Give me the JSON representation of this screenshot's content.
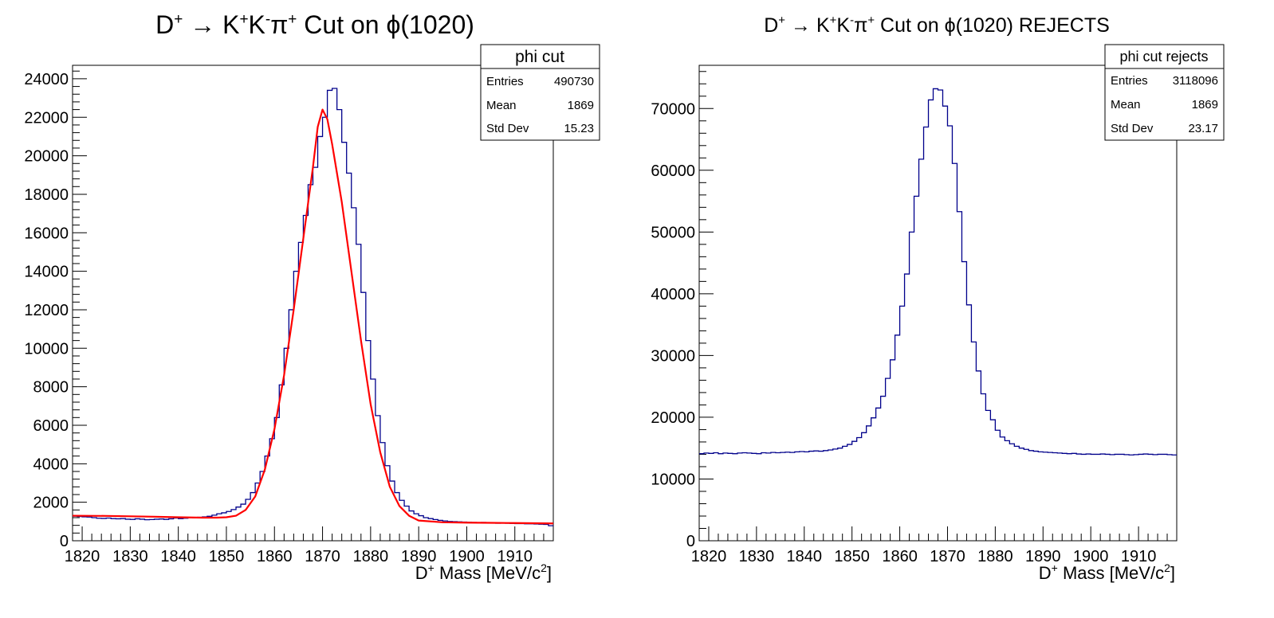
{
  "chart_data": [
    {
      "type": "histogram",
      "title": {
        "base": "D",
        "sup1": "+",
        "arrow": " → ",
        "k1": "K",
        "sup2": "+",
        "k2": "K",
        "sup3": "-",
        "pi": "π",
        "sup4": "+",
        "rest": " Cut on ",
        "phi": "ϕ",
        "tail": "(1020)"
      },
      "xlabel": {
        "pre": "D",
        "sup": "+",
        "mid": " Mass [MeV/c",
        "sup2": "2",
        "post": "]"
      },
      "ylabel": "",
      "xlim": [
        1818,
        1918
      ],
      "ylim": [
        0,
        24700
      ],
      "xticks": [
        1820,
        1830,
        1840,
        1850,
        1860,
        1870,
        1880,
        1890,
        1900,
        1910
      ],
      "yticks": [
        0,
        2000,
        4000,
        6000,
        8000,
        10000,
        12000,
        14000,
        16000,
        18000,
        20000,
        22000,
        24000
      ],
      "grid": false,
      "stats": {
        "name": "phi cut",
        "rows": [
          {
            "label": "Entries",
            "value": "490730"
          },
          {
            "label": "Mean",
            "value": "1869"
          },
          {
            "label": "Std Dev",
            "value": "15.23"
          }
        ]
      },
      "series": [
        {
          "kind": "histogram",
          "color": "#00008b",
          "bin_edges_start": 1818,
          "bin_width": 1,
          "values": [
            1280,
            1260,
            1240,
            1230,
            1200,
            1170,
            1160,
            1180,
            1150,
            1140,
            1150,
            1120,
            1110,
            1140,
            1120,
            1090,
            1100,
            1120,
            1130,
            1110,
            1140,
            1180,
            1150,
            1170,
            1200,
            1190,
            1220,
            1240,
            1270,
            1330,
            1400,
            1450,
            1520,
            1620,
            1750,
            1900,
            2150,
            2500,
            3000,
            3600,
            4400,
            5300,
            6400,
            8100,
            10000,
            12000,
            14000,
            15500,
            16900,
            18500,
            19400,
            21000,
            22000,
            23400,
            23500,
            22400,
            20700,
            19100,
            17300,
            15400,
            12900,
            10400,
            8400,
            6500,
            5100,
            3900,
            3100,
            2500,
            2100,
            1800,
            1550,
            1400,
            1300,
            1200,
            1150,
            1100,
            1060,
            1030,
            1000,
            990,
            980,
            970,
            960,
            950,
            940,
            950,
            930,
            920,
            910,
            920,
            910,
            900,
            890,
            890,
            880,
            880,
            870,
            860,
            850,
            780
          ]
        },
        {
          "kind": "fit",
          "color": "#ff0000",
          "x": [
            1818,
            1825,
            1830,
            1835,
            1840,
            1845,
            1848,
            1850,
            1852,
            1854,
            1856,
            1858,
            1860,
            1862,
            1864,
            1866,
            1868,
            1869,
            1870,
            1871,
            1872,
            1874,
            1876,
            1878,
            1880,
            1882,
            1884,
            1886,
            1888,
            1890,
            1895,
            1900,
            1905,
            1910,
            1918
          ],
          "y": [
            1300,
            1290,
            1270,
            1250,
            1220,
            1200,
            1200,
            1220,
            1300,
            1600,
            2300,
            3700,
            5800,
            8600,
            12000,
            15700,
            19400,
            21500,
            22400,
            21900,
            20600,
            17600,
            14000,
            10400,
            7100,
            4600,
            2800,
            1800,
            1300,
            1050,
            960,
            940,
            930,
            920,
            900
          ]
        }
      ]
    },
    {
      "type": "histogram",
      "title": {
        "base": "D",
        "sup1": "+",
        "arrow": " → ",
        "k1": "K",
        "sup2": "+",
        "k2": "K",
        "sup3": "-",
        "pi": "π",
        "sup4": "+",
        "rest": " Cut on ",
        "phi": "ϕ",
        "tail": "(1020) REJECTS"
      },
      "xlabel": {
        "pre": "D",
        "sup": "+",
        "mid": " Mass [MeV/c",
        "sup2": "2",
        "post": "]"
      },
      "ylabel": "",
      "xlim": [
        1818,
        1918
      ],
      "ylim": [
        0,
        77000
      ],
      "xticks": [
        1820,
        1830,
        1840,
        1850,
        1860,
        1870,
        1880,
        1890,
        1900,
        1910
      ],
      "yticks": [
        0,
        10000,
        20000,
        30000,
        40000,
        50000,
        60000,
        70000
      ],
      "grid": false,
      "stats": {
        "name": "phi cut rejects",
        "rows": [
          {
            "label": "Entries",
            "value": "3118096"
          },
          {
            "label": "Mean",
            "value": "1869"
          },
          {
            "label": "Std Dev",
            "value": "23.17"
          }
        ]
      },
      "series": [
        {
          "kind": "histogram",
          "color": "#00008b",
          "bin_edges_start": 1818,
          "bin_width": 1,
          "values": [
            14100,
            14200,
            14150,
            14250,
            14100,
            14200,
            14150,
            14100,
            14200,
            14250,
            14200,
            14150,
            14100,
            14250,
            14200,
            14300,
            14250,
            14300,
            14350,
            14300,
            14400,
            14450,
            14400,
            14500,
            14550,
            14500,
            14600,
            14700,
            14850,
            15000,
            15300,
            15600,
            16100,
            16700,
            17500,
            18600,
            19900,
            21500,
            23400,
            26300,
            29300,
            33300,
            38000,
            43200,
            50000,
            55800,
            61800,
            67000,
            71400,
            73200,
            73000,
            70400,
            67200,
            61100,
            53300,
            45200,
            38200,
            32200,
            27500,
            23800,
            21100,
            19600,
            17900,
            16800,
            16200,
            15700,
            15300,
            15000,
            14800,
            14600,
            14500,
            14400,
            14350,
            14300,
            14250,
            14200,
            14150,
            14100,
            14150,
            14050,
            14000,
            14050,
            14000,
            14000,
            14050,
            14000,
            13950,
            14000,
            14000,
            13950,
            13900,
            13950,
            14000,
            14050,
            14000,
            13950,
            14000,
            14000,
            13950,
            13900
          ]
        }
      ]
    }
  ]
}
